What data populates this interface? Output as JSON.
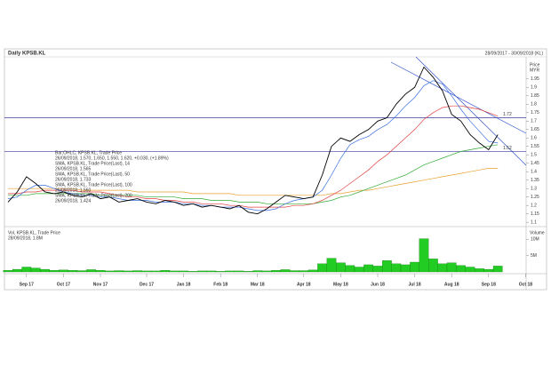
{
  "chart_data": {
    "type": "line",
    "title": "Daily KPSB.KL",
    "subtitle": "28/09/2017 - 30/09/2018 (KL)",
    "y_axis_label": "Price",
    "y_axis_unit": "MYR",
    "categories": [
      null,
      null,
      "Sep 17",
      null,
      null,
      null,
      "Oct 17",
      null,
      null,
      null,
      "Nov 17",
      null,
      null,
      null,
      null,
      "Dec 17",
      null,
      null,
      null,
      "Jan 18",
      null,
      null,
      null,
      "Feb 18",
      null,
      null,
      null,
      "Mar 18",
      null,
      null,
      null,
      null,
      "Apr 18",
      null,
      null,
      null,
      "May 18",
      null,
      null,
      null,
      "Jun 18",
      null,
      null,
      null,
      "Jul 18",
      null,
      null,
      null,
      "Aug 18",
      null,
      null,
      null,
      "Sep 18",
      null,
      null,
      null,
      "Oct 18"
    ],
    "series": [
      {
        "name": "Bar;OHLC, KPSB.KL, Trade Price",
        "note": "26/09/2018, 1.570, 1.650, 1.550, 1.620, +0.030, (+1.89%)",
        "color": "#000000",
        "values": [
          1.22,
          1.28,
          1.37,
          1.33,
          1.28,
          1.27,
          1.28,
          1.26,
          1.25,
          1.27,
          1.24,
          1.25,
          1.22,
          1.23,
          1.24,
          1.22,
          1.21,
          1.23,
          1.22,
          1.2,
          1.21,
          1.19,
          1.2,
          1.19,
          1.18,
          1.2,
          1.16,
          1.15,
          1.18,
          1.22,
          1.26,
          1.25,
          1.24,
          1.25,
          1.38,
          1.55,
          1.6,
          1.58,
          1.62,
          1.65,
          1.7,
          1.72,
          1.8,
          1.86,
          1.9,
          2.02,
          1.96,
          1.88,
          1.74,
          1.7,
          1.62,
          1.57,
          1.53,
          1.62,
          null,
          null,
          null
        ]
      },
      {
        "name": "SMA, KPSB.KL, Trade Price(Last), 14",
        "note": "26/09/2018, 1.565",
        "color": "#3a6fe0",
        "values": [
          1.24,
          1.25,
          1.29,
          1.32,
          1.32,
          1.3,
          1.28,
          1.27,
          1.26,
          1.26,
          1.25,
          1.25,
          1.24,
          1.23,
          1.23,
          1.23,
          1.22,
          1.22,
          1.22,
          1.21,
          1.21,
          1.2,
          1.2,
          1.19,
          1.19,
          1.19,
          1.18,
          1.17,
          1.17,
          1.18,
          1.21,
          1.23,
          1.24,
          1.25,
          1.29,
          1.38,
          1.48,
          1.56,
          1.59,
          1.61,
          1.65,
          1.68,
          1.73,
          1.79,
          1.84,
          1.91,
          1.94,
          1.92,
          1.85,
          1.77,
          1.7,
          1.64,
          1.58,
          1.57,
          null,
          null,
          null
        ]
      },
      {
        "name": "SMA, KPSB.KL, Trade Price(Last), 50",
        "note": "26/09/2018, 1.733",
        "color": "#e04040",
        "values": [
          1.27,
          1.27,
          1.28,
          1.28,
          1.29,
          1.29,
          1.29,
          1.29,
          1.28,
          1.28,
          1.28,
          1.27,
          1.26,
          1.25,
          1.25,
          1.24,
          1.24,
          1.23,
          1.23,
          1.22,
          1.22,
          1.21,
          1.21,
          1.21,
          1.2,
          1.2,
          1.19,
          1.19,
          1.19,
          1.19,
          1.19,
          1.2,
          1.2,
          1.21,
          1.23,
          1.26,
          1.29,
          1.33,
          1.37,
          1.41,
          1.46,
          1.5,
          1.55,
          1.6,
          1.65,
          1.71,
          1.75,
          1.78,
          1.79,
          1.79,
          1.78,
          1.77,
          1.75,
          1.73,
          null,
          null,
          null
        ]
      },
      {
        "name": "SMA, KPSB.KL, Trade Price(Last), 100",
        "note": "26/09/2018, 1.560",
        "color": "#33aa33",
        "values": [
          1.26,
          1.26,
          1.26,
          1.27,
          1.27,
          1.27,
          1.27,
          1.27,
          1.27,
          1.27,
          1.26,
          1.26,
          1.26,
          1.26,
          1.26,
          1.25,
          1.25,
          1.25,
          1.25,
          1.24,
          1.24,
          1.24,
          1.23,
          1.23,
          1.23,
          1.22,
          1.22,
          1.22,
          1.21,
          1.21,
          1.21,
          1.21,
          1.21,
          1.21,
          1.22,
          1.23,
          1.25,
          1.26,
          1.28,
          1.3,
          1.32,
          1.34,
          1.36,
          1.38,
          1.41,
          1.44,
          1.46,
          1.48,
          1.5,
          1.52,
          1.53,
          1.54,
          1.55,
          1.56,
          null,
          null,
          null
        ]
      },
      {
        "name": "SMA, KPSB.KL, Trade Price(Last), 200",
        "note": "26/09/2018, 1.424",
        "color": "#e8a030",
        "values": [
          1.3,
          1.3,
          1.3,
          1.3,
          1.3,
          1.3,
          1.3,
          1.3,
          1.29,
          1.29,
          1.29,
          1.29,
          1.29,
          1.29,
          1.28,
          1.28,
          1.28,
          1.28,
          1.28,
          1.28,
          1.27,
          1.27,
          1.27,
          1.27,
          1.27,
          1.26,
          1.26,
          1.26,
          1.26,
          1.26,
          1.26,
          1.26,
          1.26,
          1.26,
          1.26,
          1.27,
          1.27,
          1.28,
          1.29,
          1.29,
          1.3,
          1.31,
          1.32,
          1.33,
          1.34,
          1.35,
          1.36,
          1.37,
          1.38,
          1.39,
          1.4,
          1.41,
          1.42,
          1.42,
          null,
          null,
          null
        ]
      }
    ],
    "ylim": [
      1.08,
      2.07
    ],
    "yticks": [
      1.1,
      1.15,
      1.2,
      1.25,
      1.3,
      1.35,
      1.4,
      1.45,
      1.5,
      1.55,
      1.6,
      1.65,
      1.7,
      1.75,
      1.8,
      1.85,
      1.9,
      1.95
    ],
    "levels": [
      1.72,
      1.52
    ],
    "level_color": "#3a3aa0",
    "volume": {
      "name": "Vol, KPSB.KL, Trade Price",
      "note": "28/09/2018, 1.8M",
      "label": "Volume",
      "color": "#22cc22",
      "values": [
        0.5,
        0.8,
        1.5,
        1.2,
        0.8,
        0.5,
        0.6,
        0.5,
        0.4,
        0.7,
        0.5,
        0.3,
        0.4,
        0.3,
        0.4,
        0.3,
        0.3,
        0.5,
        0.3,
        0.3,
        0.2,
        0.3,
        0.3,
        0.2,
        0.3,
        0.3,
        0.2,
        0.4,
        0.3,
        0.5,
        0.7,
        0.4,
        0.4,
        0.6,
        2.5,
        4.2,
        2.8,
        2.0,
        1.5,
        2.2,
        1.8,
        3.5,
        2.5,
        2.2,
        3.0,
        10.2,
        4.0,
        2.5,
        2.8,
        2.0,
        1.5,
        1.0,
        0.8,
        1.8,
        null,
        null,
        null
      ],
      "ylim": [
        0,
        12
      ],
      "yticks": [
        {
          "value": 10,
          "label": "10M"
        },
        {
          "value": 5,
          "label": "5M"
        }
      ]
    }
  }
}
